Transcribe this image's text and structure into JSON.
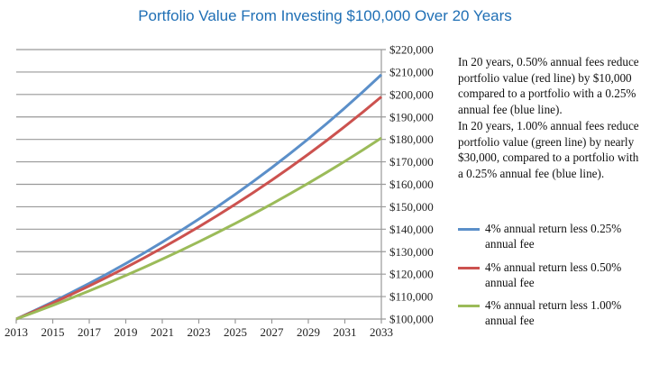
{
  "chart_data": {
    "type": "line",
    "title": "Portfolio Value From Investing $100,000 Over 20 Years",
    "x": [
      2013,
      2014,
      2015,
      2016,
      2017,
      2018,
      2019,
      2020,
      2021,
      2022,
      2023,
      2024,
      2025,
      2026,
      2027,
      2028,
      2029,
      2030,
      2031,
      2032,
      2033
    ],
    "x_ticks": [
      "2013",
      "2015",
      "2017",
      "2019",
      "2021",
      "2023",
      "2025",
      "2027",
      "2029",
      "2031",
      "2033"
    ],
    "y_ticks": [
      "$100,000",
      "$110,000",
      "$120,000",
      "$130,000",
      "$140,000",
      "$150,000",
      "$160,000",
      "$170,000",
      "$180,000",
      "$190,000",
      "$200,000",
      "$210,000",
      "$220,000"
    ],
    "ylim": [
      100000,
      220000
    ],
    "xlim": [
      2013,
      2033
    ],
    "y_axis_side": "right",
    "grid": true,
    "legend_position": "right",
    "series": [
      {
        "name": "4% annual return less 0.25% annual fee",
        "color": "#5b8fc9",
        "values": [
          100000,
          103750,
          107641,
          111677,
          115865,
          120210,
          124718,
          129395,
          134247,
          139282,
          144505,
          149924,
          155546,
          161379,
          167430,
          173709,
          180223,
          186981,
          193993,
          201268,
          208815
        ]
      },
      {
        "name": "4% annual return less 0.50% annual fee",
        "color": "#cc524f",
        "values": [
          100000,
          103500,
          107123,
          110872,
          114752,
          118769,
          122926,
          127228,
          131681,
          136290,
          141060,
          145997,
          151107,
          156396,
          161869,
          167535,
          173399,
          179468,
          185749,
          192250,
          198979
        ]
      },
      {
        "name": "4% annual return less 1.00% annual fee",
        "color": "#9bbb59",
        "values": [
          100000,
          103000,
          106090,
          109273,
          112551,
          115927,
          119405,
          122987,
          126677,
          130477,
          134392,
          138423,
          142576,
          146853,
          151259,
          155797,
          160471,
          165285,
          170243,
          175351,
          180611
        ]
      }
    ],
    "annotations": [
      "In 20 years, 0.50% annual fees reduce portfolio value (red line) by $10,000 compared to a portfolio with a 0.25% annual fee (blue line).",
      "In 20 years, 1.00% annual fees reduce portfolio value (green line) by nearly $30,000, compared to a portfolio with a 0.25% annual fee (blue line)."
    ]
  }
}
